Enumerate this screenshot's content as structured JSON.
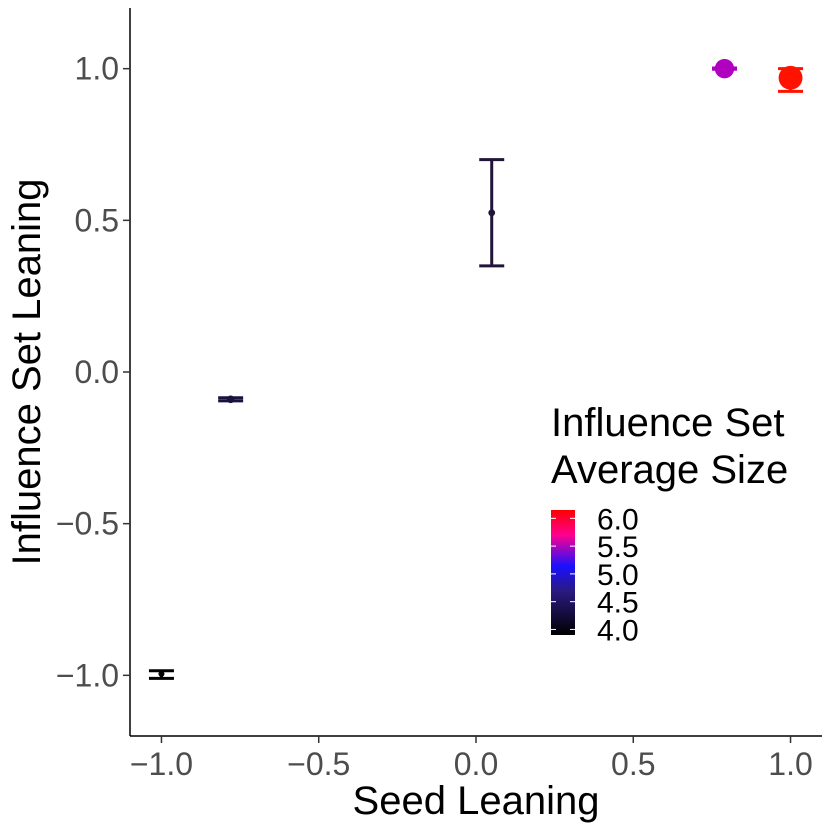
{
  "chart_data": {
    "type": "scatter",
    "title": "",
    "xlabel": "Seed Leaning",
    "ylabel": "Influence Set Leaning",
    "xlim": [
      -1.1,
      1.1
    ],
    "ylim": [
      -1.2,
      1.2
    ],
    "x_ticks": [
      -1.0,
      -0.5,
      0.0,
      0.5,
      1.0
    ],
    "x_tick_labels": [
      "−1.0",
      "−0.5",
      "0.0",
      "0.5",
      "1.0"
    ],
    "y_ticks": [
      -1.0,
      -0.5,
      0.0,
      0.5,
      1.0
    ],
    "y_tick_labels": [
      "−1.0",
      "−0.5",
      "0.0",
      "0.5",
      "1.0"
    ],
    "grid": false,
    "points": [
      {
        "x": -1.0,
        "y": -0.995,
        "ymin": -1.01,
        "ymax": -0.985,
        "size": 4.0,
        "color": "#000000"
      },
      {
        "x": -0.78,
        "y": -0.09,
        "ymin": -0.095,
        "ymax": -0.085,
        "size": 4.3,
        "color": "#1c1240"
      },
      {
        "x": 0.05,
        "y": 0.525,
        "ymin": 0.35,
        "ymax": 0.7,
        "size": 4.2,
        "color": "#221438"
      },
      {
        "x": 0.79,
        "y": 1.0,
        "ymin": 0.998,
        "ymax": 1.002,
        "size": 5.6,
        "color": "#b000c0"
      },
      {
        "x": 1.0,
        "y": 0.97,
        "ymin": 0.925,
        "ymax": 1.0,
        "size": 6.1,
        "color": "#ff1200"
      }
    ],
    "legend": {
      "title_lines": [
        "Influence Set",
        "Average Size"
      ],
      "labels": [
        "6.0",
        "5.5",
        "5.0",
        "4.5",
        "4.0"
      ],
      "values": [
        6.0,
        5.5,
        5.0,
        4.5,
        4.0
      ],
      "range": [
        3.9,
        6.15
      ],
      "colors": [
        "#000000",
        "#2a1a80",
        "#1a10ff",
        "#ff0090",
        "#ff0000"
      ],
      "position": "right-center"
    }
  }
}
